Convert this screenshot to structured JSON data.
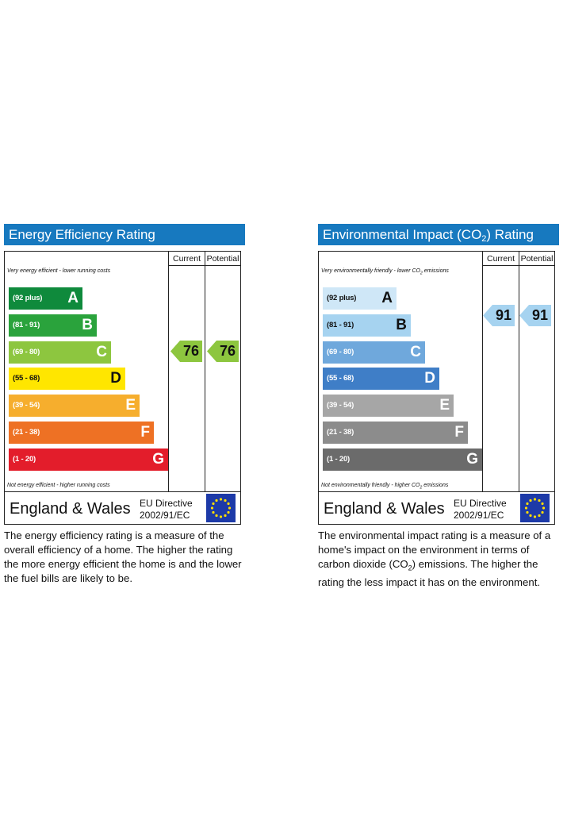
{
  "energy": {
    "title": "Energy Efficiency Rating",
    "col_current": "Current",
    "col_potential": "Potential",
    "top_note": "Very energy efficient - lower running costs",
    "bottom_note": "Not energy efficient - higher running costs",
    "bands": [
      {
        "range": "(92 plus)",
        "letter": "A",
        "color": "#0f8a3c",
        "text_color": "#ffffff"
      },
      {
        "range": "(81 - 91)",
        "letter": "B",
        "color": "#2aa33c",
        "text_color": "#ffffff"
      },
      {
        "range": "(69 - 80)",
        "letter": "C",
        "color": "#8dc63f",
        "text_color": "#ffffff"
      },
      {
        "range": "(55 - 68)",
        "letter": "D",
        "color": "#ffe600",
        "text_color": "#111111"
      },
      {
        "range": "(39 - 54)",
        "letter": "E",
        "color": "#f6ae2d",
        "text_color": "#ffffff"
      },
      {
        "range": "(21 - 38)",
        "letter": "F",
        "color": "#ee7124",
        "text_color": "#ffffff"
      },
      {
        "range": "(1 - 20)",
        "letter": "G",
        "color": "#e31d2b",
        "text_color": "#ffffff"
      }
    ],
    "current": "76",
    "potential": "76",
    "arrow_color": "#8dc63f",
    "region": "England & Wales",
    "directive_line1": "EU Directive",
    "directive_line2": "2002/91/EC",
    "description": "The energy efficiency rating is a measure of the overall efficiency of a home. The higher the rating the more energy efficient the home is and the lower the fuel bills are likely to be."
  },
  "environment": {
    "title_prefix": "Environmental Impact (CO",
    "title_sub": "2",
    "title_suffix": ") Rating",
    "col_current": "Current",
    "col_potential": "Potential",
    "top_note_prefix": "Very environmentally friendly - lower CO",
    "top_note_sub": "2",
    "top_note_suffix": " emissions",
    "bottom_note_prefix": "Not environmentally friendly - higher CO",
    "bottom_note_sub": "2",
    "bottom_note_suffix": " emissions",
    "bands": [
      {
        "range": "(92 plus)",
        "letter": "A",
        "color": "#cfe7f7",
        "text_color": "#111111"
      },
      {
        "range": "(81 - 91)",
        "letter": "B",
        "color": "#a6d3f0",
        "text_color": "#111111"
      },
      {
        "range": "(69 - 80)",
        "letter": "C",
        "color": "#6fa8dc",
        "text_color": "#ffffff"
      },
      {
        "range": "(55 - 68)",
        "letter": "D",
        "color": "#3f7ec7",
        "text_color": "#ffffff"
      },
      {
        "range": "(39 - 54)",
        "letter": "E",
        "color": "#a6a6a6",
        "text_color": "#ffffff"
      },
      {
        "range": "(21 - 38)",
        "letter": "F",
        "color": "#8c8c8c",
        "text_color": "#ffffff"
      },
      {
        "range": "(1 - 20)",
        "letter": "G",
        "color": "#6b6b6b",
        "text_color": "#ffffff"
      }
    ],
    "current": "91",
    "potential": "91",
    "arrow_color": "#a6d3f0",
    "region": "England & Wales",
    "directive_line1": "EU Directive",
    "directive_line2": "2002/91/EC",
    "description_part1": "The environmental impact rating is a measure of a home's impact on the environment in terms of carbon dioxide (CO",
    "description_sub": "2",
    "description_part2": ") emissions. The higher the rating the less impact it has on the environment."
  }
}
